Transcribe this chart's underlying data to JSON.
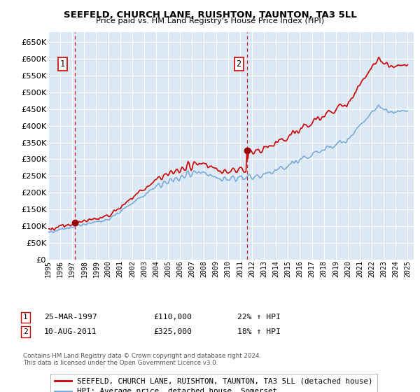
{
  "title": "SEEFELD, CHURCH LANE, RUISHTON, TAUNTON, TA3 5LL",
  "subtitle": "Price paid vs. HM Land Registry's House Price Index (HPI)",
  "ylim": [
    0,
    680000
  ],
  "xlim_start": 1995.0,
  "xlim_end": 2025.5,
  "bg_color": "#dce9f5",
  "grid_color": "#c8d8e8",
  "purchase1_year": 1997.23,
  "purchase1_price": 110000,
  "purchase1_label": "1",
  "purchase2_year": 2011.62,
  "purchase2_price": 325000,
  "purchase2_label": "2",
  "legend_line1": "SEEFELD, CHURCH LANE, RUISHTON, TAUNTON, TA3 5LL (detached house)",
  "legend_line2": "HPI: Average price, detached house, Somerset",
  "footnote": "Contains HM Land Registry data © Crown copyright and database right 2024.\nThis data is licensed under the Open Government Licence v3.0.",
  "red_line_color": "#cc0000",
  "blue_line_color": "#7aaadd",
  "marker_color": "#990000",
  "vline_color": "#cc0000"
}
